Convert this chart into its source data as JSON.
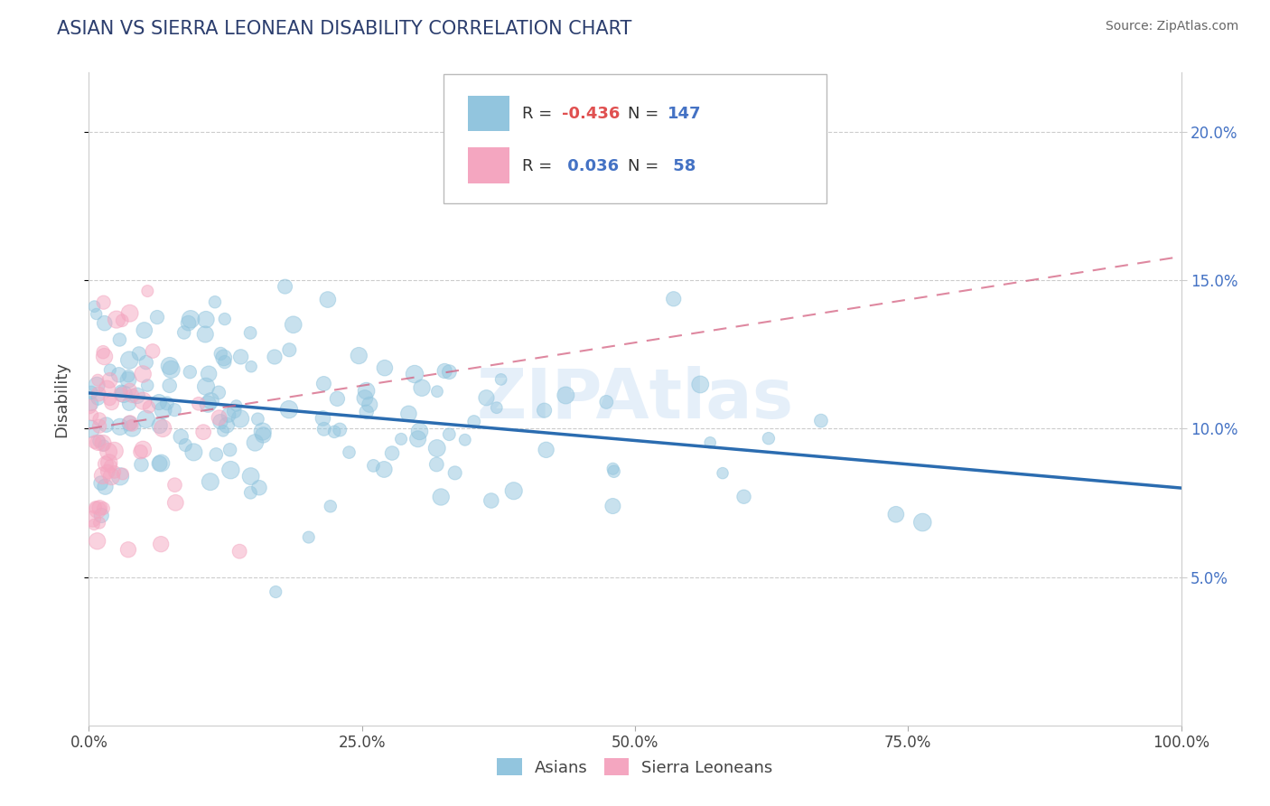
{
  "title": "ASIAN VS SIERRA LEONEAN DISABILITY CORRELATION CHART",
  "source": "Source: ZipAtlas.com",
  "ylabel": "Disability",
  "xlim": [
    0,
    100
  ],
  "ylim": [
    0,
    22
  ],
  "yticks": [
    5,
    10,
    15,
    20
  ],
  "xticks": [
    0,
    25,
    50,
    75,
    100
  ],
  "xtick_labels": [
    "0.0%",
    "25.0%",
    "50.0%",
    "75.0%",
    "100.0%"
  ],
  "ytick_labels_right": [
    "5.0%",
    "10.0%",
    "15.0%",
    "20.0%"
  ],
  "blue_color": "#92c5de",
  "pink_color": "#f4a6c0",
  "blue_line_color": "#2b6cb0",
  "pink_line_color": "#d46080",
  "title_color": "#2c3e6e",
  "source_color": "#666666",
  "R_blue": -0.436,
  "R_pink": 0.036,
  "N_blue": 147,
  "N_pink": 58,
  "blue_intercept": 11.2,
  "blue_slope": -0.032,
  "pink_intercept": 10.0,
  "pink_slope": 0.058,
  "watermark": "ZIPAtlas"
}
